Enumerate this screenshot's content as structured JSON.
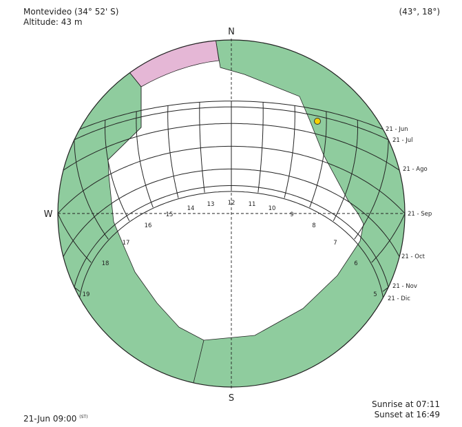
{
  "location": {
    "title": "Montevideo (34° 52' S)",
    "altitude": "Altitude: 43 m"
  },
  "sun_position": "(43°, 18°)",
  "datetime": {
    "value": "21-Jun 09:00",
    "suffix": "(ST)"
  },
  "sunrise": "Sunrise at 07:11",
  "sunset": "Sunset at 16:49",
  "compass": {
    "north": "N",
    "south": "S",
    "west": "W"
  },
  "date_curves": [
    {
      "label": "21 - Jun",
      "alt_noon": 31.7
    },
    {
      "label": "21 - Jul",
      "alt_noon": 34.9
    },
    {
      "label": "21 - Ago",
      "alt_noon": 43.4
    },
    {
      "label": "21 - Sep",
      "alt_noon": 55.1
    },
    {
      "label": "21 - Oct",
      "alt_noon": 66.9
    },
    {
      "label": "21 - Nov",
      "alt_noon": 75.3
    },
    {
      "label": "21 - Dic",
      "alt_noon": 78.5
    }
  ],
  "hour_labels": [
    "5",
    "6",
    "7",
    "8",
    "9",
    "10",
    "11",
    "12",
    "13",
    "14",
    "15",
    "16",
    "17",
    "18",
    "19"
  ],
  "colors": {
    "obstruction": "#8fcc9e",
    "highlight": "#e5b7d6",
    "sun_marker": "#f5d000",
    "line": "#222222"
  },
  "icons": {
    "sun_marker": "sun-position-marker"
  }
}
